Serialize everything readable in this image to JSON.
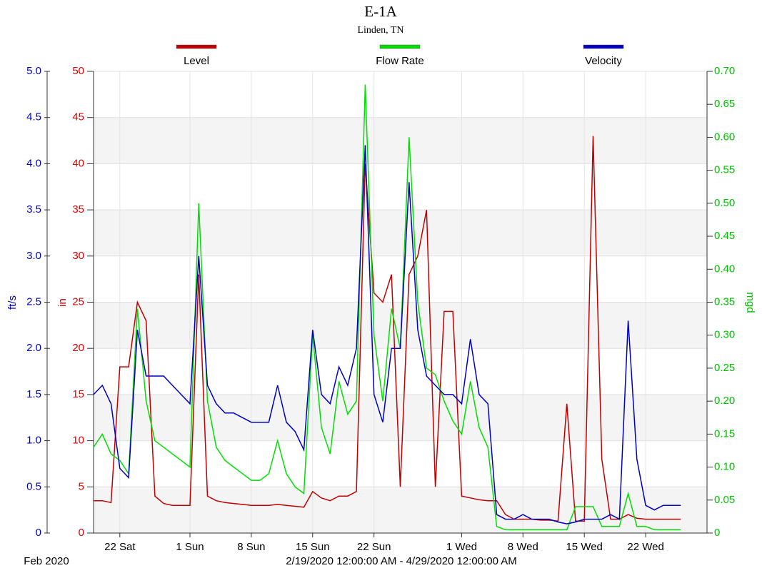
{
  "chart_data": {
    "type": "line",
    "title": "E-1A",
    "subtitle": "Linden, TN",
    "x_month_label": "Feb 2020",
    "x_range_label": "2/19/2020 12:00:00 AM - 4/29/2020 12:00:00 AM",
    "xlim": [
      "2020-02-19",
      "2020-04-29"
    ],
    "xticks": [
      {
        "value": "2020-02-22",
        "label": "22 Sat"
      },
      {
        "value": "2020-03-01",
        "label": "1 Sun"
      },
      {
        "value": "2020-03-08",
        "label": "8 Sun"
      },
      {
        "value": "2020-03-15",
        "label": "15 Sun"
      },
      {
        "value": "2020-03-22",
        "label": "22 Sun"
      },
      {
        "value": "2020-04-01",
        "label": "1 Wed"
      },
      {
        "value": "2020-04-08",
        "label": "8 Wed"
      },
      {
        "value": "2020-04-15",
        "label": "15 Wed"
      },
      {
        "value": "2020-04-22",
        "label": "22 Wed"
      }
    ],
    "ylabel": "ft/s",
    "ylim": [
      0,
      5
    ],
    "yticks": [
      0,
      0.5,
      {
        "value": 1,
        "label": "1.0"
      },
      1.5,
      {
        "value": 2,
        "label": "2.0"
      },
      2.5,
      {
        "value": 3,
        "label": "3.0"
      },
      3.5,
      {
        "value": 4,
        "label": "4.0"
      },
      4.5,
      {
        "value": 5,
        "label": "5.0"
      }
    ],
    "y3label": "in",
    "y3lim": [
      0,
      50
    ],
    "y3ticks": [
      0,
      5,
      10,
      15,
      20,
      25,
      30,
      35,
      40,
      45,
      50
    ],
    "y2label": "mgd",
    "y2lim": [
      0,
      0.7
    ],
    "y2ticks": [
      0,
      0.05,
      {
        "value": 0.1,
        "label": "0.10"
      },
      0.15,
      {
        "value": 0.2,
        "label": "0.20"
      },
      0.25,
      {
        "value": 0.3,
        "label": "0.30"
      },
      0.35,
      {
        "value": 0.4,
        "label": "0.40"
      },
      0.45,
      {
        "value": 0.5,
        "label": "0.50"
      },
      0.55,
      {
        "value": 0.6,
        "label": "0.60"
      },
      0.65,
      {
        "value": 0.7,
        "label": "0.70"
      }
    ],
    "grid": true,
    "x": [
      "2020-02-19",
      "2020-02-20",
      "2020-02-21",
      "2020-02-22",
      "2020-02-23",
      "2020-02-24",
      "2020-02-25",
      "2020-02-26",
      "2020-02-27",
      "2020-02-28",
      "2020-02-29",
      "2020-03-01",
      "2020-03-02",
      "2020-03-03",
      "2020-03-04",
      "2020-03-05",
      "2020-03-06",
      "2020-03-07",
      "2020-03-08",
      "2020-03-09",
      "2020-03-10",
      "2020-03-11",
      "2020-03-12",
      "2020-03-13",
      "2020-03-14",
      "2020-03-15",
      "2020-03-16",
      "2020-03-17",
      "2020-03-18",
      "2020-03-19",
      "2020-03-20",
      "2020-03-21",
      "2020-03-22",
      "2020-03-23",
      "2020-03-24",
      "2020-03-25",
      "2020-03-26",
      "2020-03-27",
      "2020-03-28",
      "2020-03-29",
      "2020-03-30",
      "2020-03-31",
      "2020-04-01",
      "2020-04-02",
      "2020-04-03",
      "2020-04-04",
      "2020-04-05",
      "2020-04-06",
      "2020-04-07",
      "2020-04-08",
      "2020-04-09",
      "2020-04-10",
      "2020-04-11",
      "2020-04-12",
      "2020-04-13",
      "2020-04-14",
      "2020-04-15",
      "2020-04-16",
      "2020-04-17",
      "2020-04-18",
      "2020-04-19",
      "2020-04-20",
      "2020-04-21",
      "2020-04-22",
      "2020-04-23",
      "2020-04-24",
      "2020-04-25",
      "2020-04-26"
    ],
    "series": [
      {
        "name": "Level",
        "color": "#c00000",
        "axis": "y3",
        "values": [
          3.5,
          3.5,
          3.3,
          18,
          18,
          25,
          23,
          4,
          3.2,
          3,
          3,
          3,
          28,
          4,
          3.5,
          3.3,
          3.2,
          3.1,
          3,
          3,
          3,
          3.1,
          3,
          2.9,
          2.8,
          4.5,
          3.8,
          3.5,
          4,
          4,
          4.5,
          40,
          26,
          25,
          28,
          5,
          28,
          30,
          35,
          5,
          24,
          24,
          4,
          3.8,
          3.6,
          3.5,
          3.5,
          2,
          1.5,
          1.5,
          1.5,
          1.4,
          1.4,
          1.3,
          14,
          1.3,
          1.3,
          43,
          8,
          1.5,
          1.5,
          2,
          1.6,
          1.5,
          1.5,
          1.5,
          1.5,
          1.5
        ]
      },
      {
        "name": "Flow Rate",
        "color": "#00e000",
        "axis": "y2",
        "values": [
          0.13,
          0.15,
          0.12,
          0.11,
          0.09,
          0.34,
          0.2,
          0.14,
          0.13,
          0.12,
          0.11,
          0.1,
          0.5,
          0.2,
          0.13,
          0.11,
          0.1,
          0.09,
          0.08,
          0.08,
          0.09,
          0.14,
          0.09,
          0.07,
          0.06,
          0.3,
          0.16,
          0.12,
          0.23,
          0.18,
          0.2,
          0.68,
          0.3,
          0.2,
          0.34,
          0.28,
          0.6,
          0.35,
          0.25,
          0.24,
          0.2,
          0.17,
          0.15,
          0.23,
          0.16,
          0.13,
          0.01,
          0.005,
          0.005,
          0.005,
          0.005,
          0.005,
          0.005,
          0.005,
          0.005,
          0.04,
          0.04,
          0.04,
          0.01,
          0.01,
          0.01,
          0.06,
          0.01,
          0.01,
          0.005,
          0.005,
          0.005,
          0.005
        ]
      },
      {
        "name": "Velocity",
        "color": "#0000c0",
        "axis": "y",
        "values": [
          1.5,
          1.6,
          1.4,
          0.7,
          0.6,
          2.2,
          1.7,
          1.7,
          1.7,
          1.6,
          1.5,
          1.4,
          3,
          1.6,
          1.4,
          1.3,
          1.3,
          1.25,
          1.2,
          1.2,
          1.2,
          1.6,
          1.2,
          1.1,
          0.9,
          2.2,
          1.5,
          1.4,
          1.8,
          1.6,
          2,
          4.2,
          1.5,
          1.2,
          2,
          2,
          3.8,
          2.2,
          1.7,
          1.6,
          1.5,
          1.5,
          1.4,
          2.1,
          1.5,
          1.4,
          0.2,
          0.15,
          0.15,
          0.2,
          0.15,
          0.15,
          0.15,
          0.12,
          0.1,
          0.12,
          0.15,
          0.15,
          0.15,
          0.2,
          0.15,
          2.3,
          0.8,
          0.3,
          0.25,
          0.3,
          0.3,
          0.3
        ]
      }
    ]
  }
}
